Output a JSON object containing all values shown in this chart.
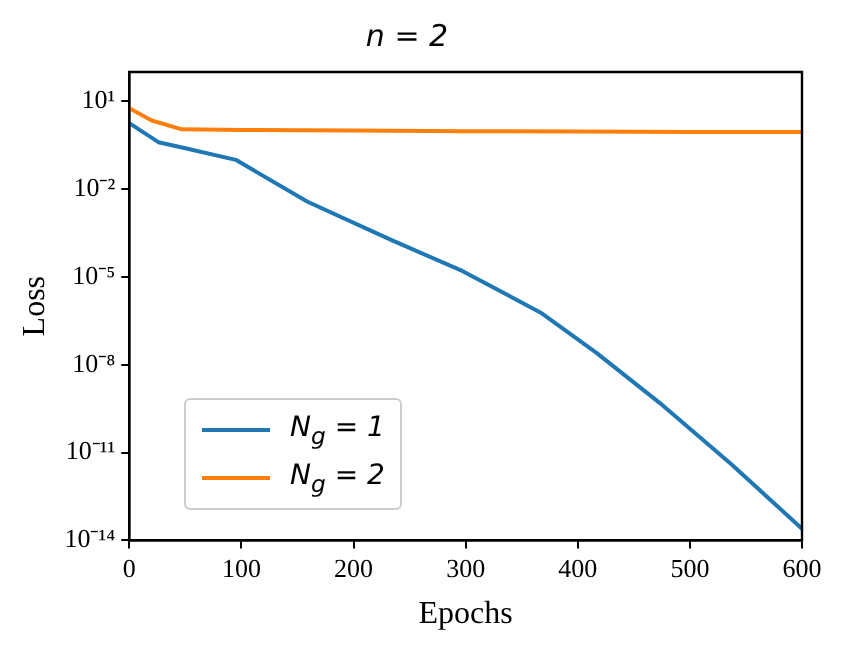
{
  "chart_data": {
    "type": "line",
    "title": "n = 2",
    "xlabel": "Epochs",
    "ylabel": "Loss",
    "log": "y",
    "legend": "bottom left",
    "grid": false,
    "marker": "none",
    "line_style": "solid",
    "xlim": [
      0,
      600
    ],
    "xticks": [
      0,
      100,
      200,
      300,
      400,
      500,
      600
    ],
    "ylim": [
      1e-14,
      100
    ],
    "yticks": [
      {
        "value": 10,
        "label": "10¹"
      },
      {
        "value": 0.01,
        "label": "10⁻²"
      },
      {
        "value": 1e-05,
        "label": "10⁻⁵"
      },
      {
        "value": 1e-08,
        "label": "10⁻⁸"
      },
      {
        "value": 1e-11,
        "label": "10⁻¹¹"
      },
      {
        "value": 1e-14,
        "label": "10⁻¹⁴"
      }
    ],
    "series": [
      {
        "name": "N$_{g}$ = 1",
        "color": "#1f77b4",
        "x": [
          0,
          26,
          50,
          95,
          159,
          234,
          297,
          367,
          417,
          473,
          537,
          600
        ],
        "values": [
          1.8,
          0.4,
          0.25,
          0.1,
          0.0037,
          0.00018,
          1.6e-05,
          6e-07,
          2.5e-08,
          5e-10,
          4e-12,
          2.5e-14
        ]
      },
      {
        "name": "N$_{g}$ = 2",
        "color": "#ff7f0e",
        "x": [
          0,
          20,
          47,
          100,
          200,
          300,
          400,
          500,
          600
        ],
        "values": [
          5.8,
          2.2,
          1.1,
          1.05,
          1.0,
          0.95,
          0.92,
          0.9,
          0.9
        ]
      }
    ]
  }
}
